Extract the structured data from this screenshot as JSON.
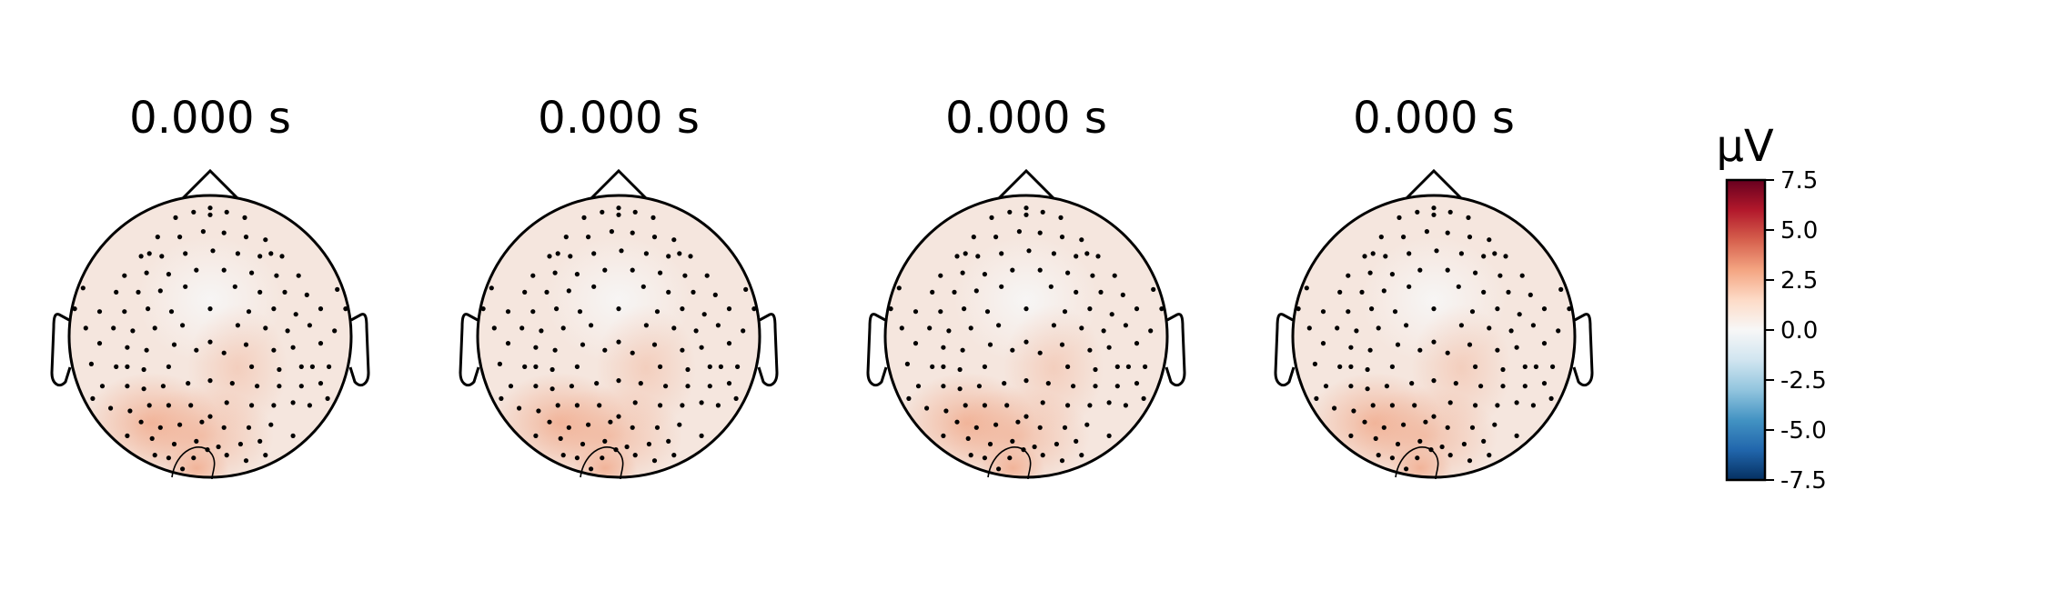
{
  "chart_data": {
    "type": "topomap",
    "unit": "µV",
    "panels": [
      {
        "title": "0.000 s"
      },
      {
        "title": "0.000 s"
      },
      {
        "title": "0.000 s"
      },
      {
        "title": "0.000 s"
      }
    ],
    "colorbar": {
      "label": "µV",
      "range": [
        -7.5,
        7.5
      ],
      "ticks": [
        "7.5",
        "5.0",
        "2.5",
        "0.0",
        "-2.5",
        "-5.0",
        "-7.5"
      ],
      "tick_values": [
        7.5,
        5.0,
        2.5,
        0.0,
        -2.5,
        -5.0,
        -7.5
      ],
      "colormap": "RdBu_r",
      "colors": [
        "#053061",
        "#2166ac",
        "#4393c3",
        "#92c5de",
        "#d1e5f0",
        "#f7f7f7",
        "#fddbc7",
        "#f4a582",
        "#d6604d",
        "#b2182b",
        "#67001f"
      ]
    },
    "field": {
      "baseline_color": "#f5e6de",
      "hotspot_color": "#f0a889",
      "description_values": {
        "max_uV": 2.5,
        "min_uV": 0.0
      }
    },
    "sensor_count": 128,
    "contour": true
  }
}
